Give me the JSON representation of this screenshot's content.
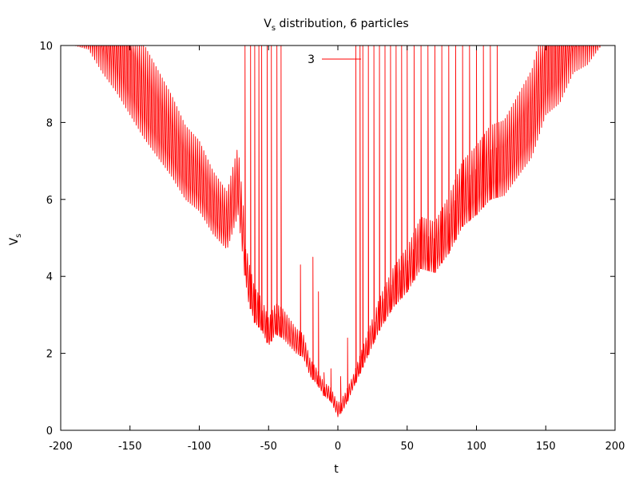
{
  "chart_data": {
    "type": "line",
    "title": {
      "main": "V",
      "sub": "s",
      "rest": " distribution, 6 particles"
    },
    "xlabel": "t",
    "ylabel": {
      "main": "V",
      "sub": "s"
    },
    "xlim": [
      -200,
      200
    ],
    "ylim": [
      0,
      10
    ],
    "xticks": [
      -200,
      -150,
      -100,
      -50,
      0,
      50,
      100,
      150,
      200
    ],
    "xtick_labels": [
      "-200",
      "-150",
      "-100",
      "-50",
      "0",
      "50",
      "100",
      "150",
      "200"
    ],
    "yticks": [
      0,
      2,
      4,
      6,
      8,
      10
    ],
    "ytick_labels": [
      "0",
      "2",
      "4",
      "6",
      "8",
      "10"
    ],
    "grid": false,
    "legend": {
      "position": "top-center",
      "entries": [
        {
          "label": "3",
          "color": "#ff0000"
        }
      ]
    },
    "series": [
      {
        "name": "3",
        "color": "#ff0000",
        "period": 1.5,
        "envelope_minima": [
          [
            -200,
            10.0
          ],
          [
            -190,
            10.0
          ],
          [
            -180,
            9.9
          ],
          [
            -170,
            9.3
          ],
          [
            -160,
            8.8
          ],
          [
            -150,
            8.2
          ],
          [
            -140,
            7.6
          ],
          [
            -130,
            7.1
          ],
          [
            -120,
            6.6
          ],
          [
            -110,
            6.0
          ],
          [
            -100,
            5.7
          ],
          [
            -90,
            5.1
          ],
          [
            -80,
            4.7
          ],
          [
            -72,
            5.6
          ],
          [
            -65,
            3.4
          ],
          [
            -60,
            2.8
          ],
          [
            -55,
            2.6
          ],
          [
            -50,
            2.2
          ],
          [
            -45,
            2.5
          ],
          [
            -40,
            2.4
          ],
          [
            -35,
            2.2
          ],
          [
            -30,
            2.0
          ],
          [
            -25,
            1.9
          ],
          [
            -20,
            1.4
          ],
          [
            -15,
            1.2
          ],
          [
            -10,
            0.9
          ],
          [
            -5,
            0.75
          ],
          [
            0,
            0.35
          ],
          [
            5,
            0.6
          ],
          [
            10,
            1.0
          ],
          [
            15,
            1.4
          ],
          [
            20,
            1.8
          ],
          [
            25,
            2.2
          ],
          [
            30,
            2.6
          ],
          [
            40,
            3.2
          ],
          [
            50,
            3.6
          ],
          [
            60,
            4.2
          ],
          [
            70,
            4.1
          ],
          [
            80,
            4.6
          ],
          [
            90,
            5.3
          ],
          [
            100,
            5.6
          ],
          [
            110,
            6.0
          ],
          [
            120,
            6.1
          ],
          [
            130,
            6.6
          ],
          [
            140,
            7.1
          ],
          [
            150,
            8.2
          ],
          [
            160,
            8.5
          ],
          [
            170,
            9.3
          ],
          [
            180,
            9.5
          ],
          [
            190,
            10.0
          ],
          [
            200,
            10.0
          ]
        ],
        "spikes": [
          [
            -67,
            10.0
          ],
          [
            -63,
            10.0
          ],
          [
            -60,
            10.0
          ],
          [
            -57,
            10.0
          ],
          [
            -55,
            10.0
          ],
          [
            -51,
            10.0
          ],
          [
            -48,
            10.0
          ],
          [
            -44,
            10.0
          ],
          [
            -41,
            10.0
          ],
          [
            -27,
            4.3
          ],
          [
            -18,
            4.5
          ],
          [
            -14,
            3.6
          ],
          [
            -10,
            1.5
          ],
          [
            -5,
            1.6
          ],
          [
            2,
            1.4
          ],
          [
            7,
            2.4
          ],
          [
            13,
            10.0
          ],
          [
            16,
            10.0
          ],
          [
            18,
            10.0
          ],
          [
            22,
            10.0
          ],
          [
            26,
            10.0
          ],
          [
            30,
            10.0
          ],
          [
            34,
            10.0
          ],
          [
            38,
            10.0
          ],
          [
            42,
            10.0
          ],
          [
            46,
            10.0
          ],
          [
            50,
            10.0
          ],
          [
            55,
            10.0
          ],
          [
            60,
            10.0
          ],
          [
            65,
            10.0
          ],
          [
            70,
            10.0
          ],
          [
            75,
            10.0
          ],
          [
            80,
            10.0
          ],
          [
            85,
            10.0
          ],
          [
            90,
            10.0
          ],
          [
            95,
            10.0
          ],
          [
            100,
            10.0
          ],
          [
            105,
            10.0
          ],
          [
            110,
            10.0
          ],
          [
            115,
            10.0
          ]
        ]
      }
    ]
  }
}
